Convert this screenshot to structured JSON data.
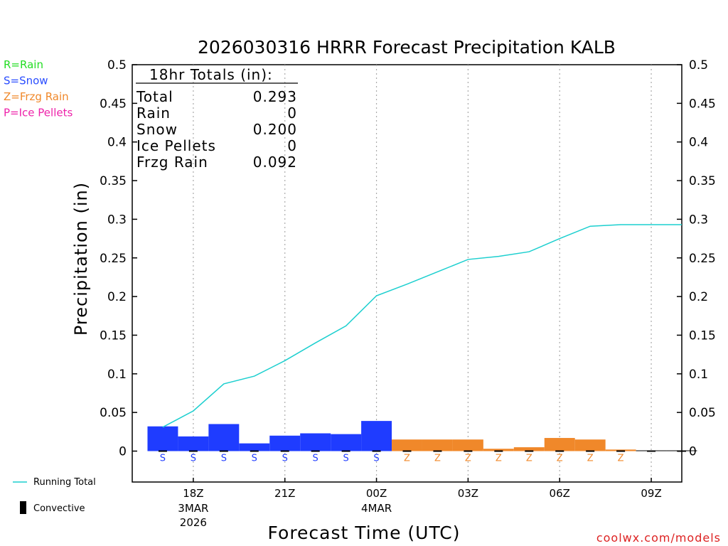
{
  "chart_data": {
    "type": "bar",
    "title": "2026030316 HRRR Forecast Precipitation KALB",
    "ylabel": "Precipitation (in)",
    "xlabel": "Forecast Time (UTC)",
    "ylim": [
      -0.04,
      0.5
    ],
    "y_ticks": [
      0,
      0.05,
      0.1,
      0.15,
      0.2,
      0.25,
      0.3,
      0.35,
      0.4,
      0.45,
      0.5
    ],
    "y_tick_labels": [
      "0",
      "0.05",
      "0.1",
      "0.15",
      "0.2",
      "0.25",
      "0.3",
      "0.35",
      "0.4",
      "0.45",
      "0.5"
    ],
    "x_hours": [
      17,
      18,
      19,
      20,
      21,
      22,
      23,
      24,
      25,
      26,
      27,
      28,
      29,
      30,
      31,
      32,
      33,
      34
    ],
    "x_range": [
      16,
      34
    ],
    "x_ticks": [
      {
        "hour": 18,
        "label": "18Z",
        "sub1": "3MAR",
        "sub2": "2026"
      },
      {
        "hour": 21,
        "label": "21Z",
        "sub1": "",
        "sub2": ""
      },
      {
        "hour": 24,
        "label": "00Z",
        "sub1": "4MAR",
        "sub2": ""
      },
      {
        "hour": 27,
        "label": "03Z",
        "sub1": "",
        "sub2": ""
      },
      {
        "hour": 30,
        "label": "06Z",
        "sub1": "",
        "sub2": ""
      },
      {
        "hour": 33,
        "label": "09Z",
        "sub1": "",
        "sub2": ""
      }
    ],
    "bars": [
      0.032,
      0.019,
      0.035,
      0.01,
      0.02,
      0.023,
      0.022,
      0.039,
      0.015,
      0.015,
      0.015,
      0.003,
      0.005,
      0.017,
      0.015,
      0.002,
      0.0005,
      0.0005
    ],
    "precip_types": [
      "S",
      "S",
      "S",
      "S",
      "S",
      "S",
      "S",
      "S",
      "Z",
      "Z",
      "Z",
      "Z",
      "Z",
      "Z",
      "Z",
      "Z",
      "",
      ""
    ],
    "running_total": [
      0.031,
      0.052,
      0.087,
      0.097,
      0.117,
      0.14,
      0.162,
      0.201,
      0.216,
      0.232,
      0.248,
      0.252,
      0.258,
      0.275,
      0.291,
      0.293,
      0.293,
      0.293
    ],
    "convective": [
      0,
      0,
      0,
      0,
      0,
      0,
      0,
      0,
      0,
      0,
      0,
      0,
      0,
      0,
      0,
      0,
      0,
      0
    ],
    "type_colors": {
      "S": "#1f3cff",
      "Z": "#f0882a",
      "R": "#22dd22",
      "P": "#ee22aa"
    },
    "line_color": "#1ccfcf",
    "grid": "vertical-dotted",
    "totals_box": {
      "heading": "18hr Totals (in):",
      "rows": [
        {
          "label": "Total",
          "value": "0.293"
        },
        {
          "label": "Rain",
          "value": "0"
        },
        {
          "label": "Snow",
          "value": "0.200"
        },
        {
          "label": "Ice Pellets",
          "value": "0"
        },
        {
          "label": "Frzg Rain",
          "value": "0.092"
        }
      ]
    },
    "type_legend": [
      {
        "text": "R=Rain",
        "color": "#22dd22"
      },
      {
        "text": "S=Snow",
        "color": "#2a4dff"
      },
      {
        "text": "Z=Frzg Rain",
        "color": "#f0882a"
      },
      {
        "text": "P=Ice Pellets",
        "color": "#ee22aa"
      }
    ],
    "series_legend": [
      {
        "text": "Running Total",
        "kind": "line"
      },
      {
        "text": "Convective",
        "kind": "bar"
      }
    ],
    "credit": "coolwx.com/models"
  }
}
